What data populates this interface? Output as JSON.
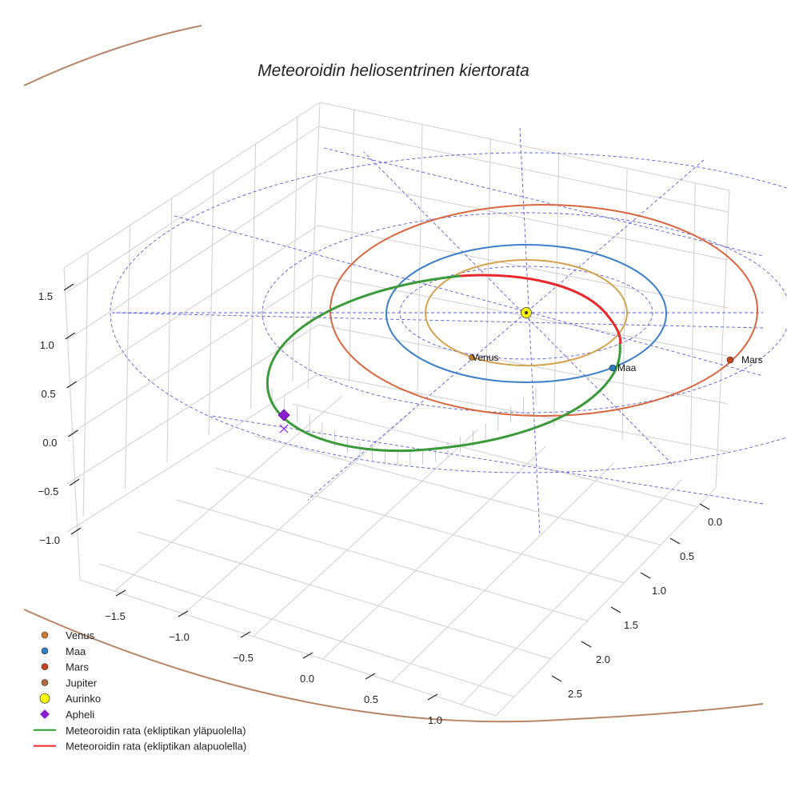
{
  "chart_data": {
    "type": "line3d",
    "title": "Meteoroidin heliosentrinen kiertorata",
    "axes": {
      "x_ticks": [
        "−1.5",
        "−1.0",
        "−0.5",
        "0.0",
        "0.5",
        "1.0"
      ],
      "y_ticks": [
        "0.0",
        "0.5",
        "1.0",
        "1.5",
        "2.0",
        "2.5"
      ],
      "z_ticks": [
        "1.5",
        "1.0",
        "0.5",
        "0.0",
        "−0.5",
        "−1.0"
      ],
      "grid": true
    },
    "orbits": [
      {
        "name": "Venus",
        "color": "#d4a24c"
      },
      {
        "name": "Maa",
        "color": "#3b7fc9"
      },
      {
        "name": "Mars",
        "color": "#d9663f"
      },
      {
        "name": "Jupiter",
        "color": "#b78565"
      }
    ],
    "meteoroid_track": [
      {
        "name": "Meteoroidin rata (ekliptikan yläpuolella)",
        "color": "#3a9a3a"
      },
      {
        "name": "Meteoroidin rata (ekliptikan alapuolella)",
        "color": "#e8282b"
      }
    ],
    "bodies": [
      {
        "name": "Venus",
        "label": "Venus",
        "color": "#c97b2a"
      },
      {
        "name": "Maa",
        "label": "Maa",
        "color": "#2d7bc1"
      },
      {
        "name": "Mars",
        "label": "Mars",
        "color": "#c9441b"
      },
      {
        "name": "Aurinko",
        "color": "#ffff00"
      }
    ],
    "aphelion": {
      "name": "Apheli",
      "color": "#8a1fd0"
    },
    "legend": {
      "position": "bottom-left",
      "entries": [
        {
          "label": "Venus",
          "kind": "dot",
          "color": "#c97b2a"
        },
        {
          "label": "Maa",
          "kind": "dot",
          "color": "#2d7bc1"
        },
        {
          "label": "Mars",
          "kind": "dot",
          "color": "#c9441b"
        },
        {
          "label": "Jupiter",
          "kind": "dot",
          "color": "#b06a3c"
        },
        {
          "label": "Aurinko",
          "kind": "bigdot",
          "color": "#ffff00"
        },
        {
          "label": "Apheli",
          "kind": "diamond",
          "color": "#8a1fd0"
        },
        {
          "label": "Meteoroidin rata (ekliptikan yläpuolella)",
          "kind": "line",
          "color": "#2a9a2a"
        },
        {
          "label": "Meteoroidin rata (ekliptikan alapuolella)",
          "kind": "line",
          "color": "#e8282b"
        }
      ]
    },
    "reference_grid_color": "#5a5ae0"
  }
}
